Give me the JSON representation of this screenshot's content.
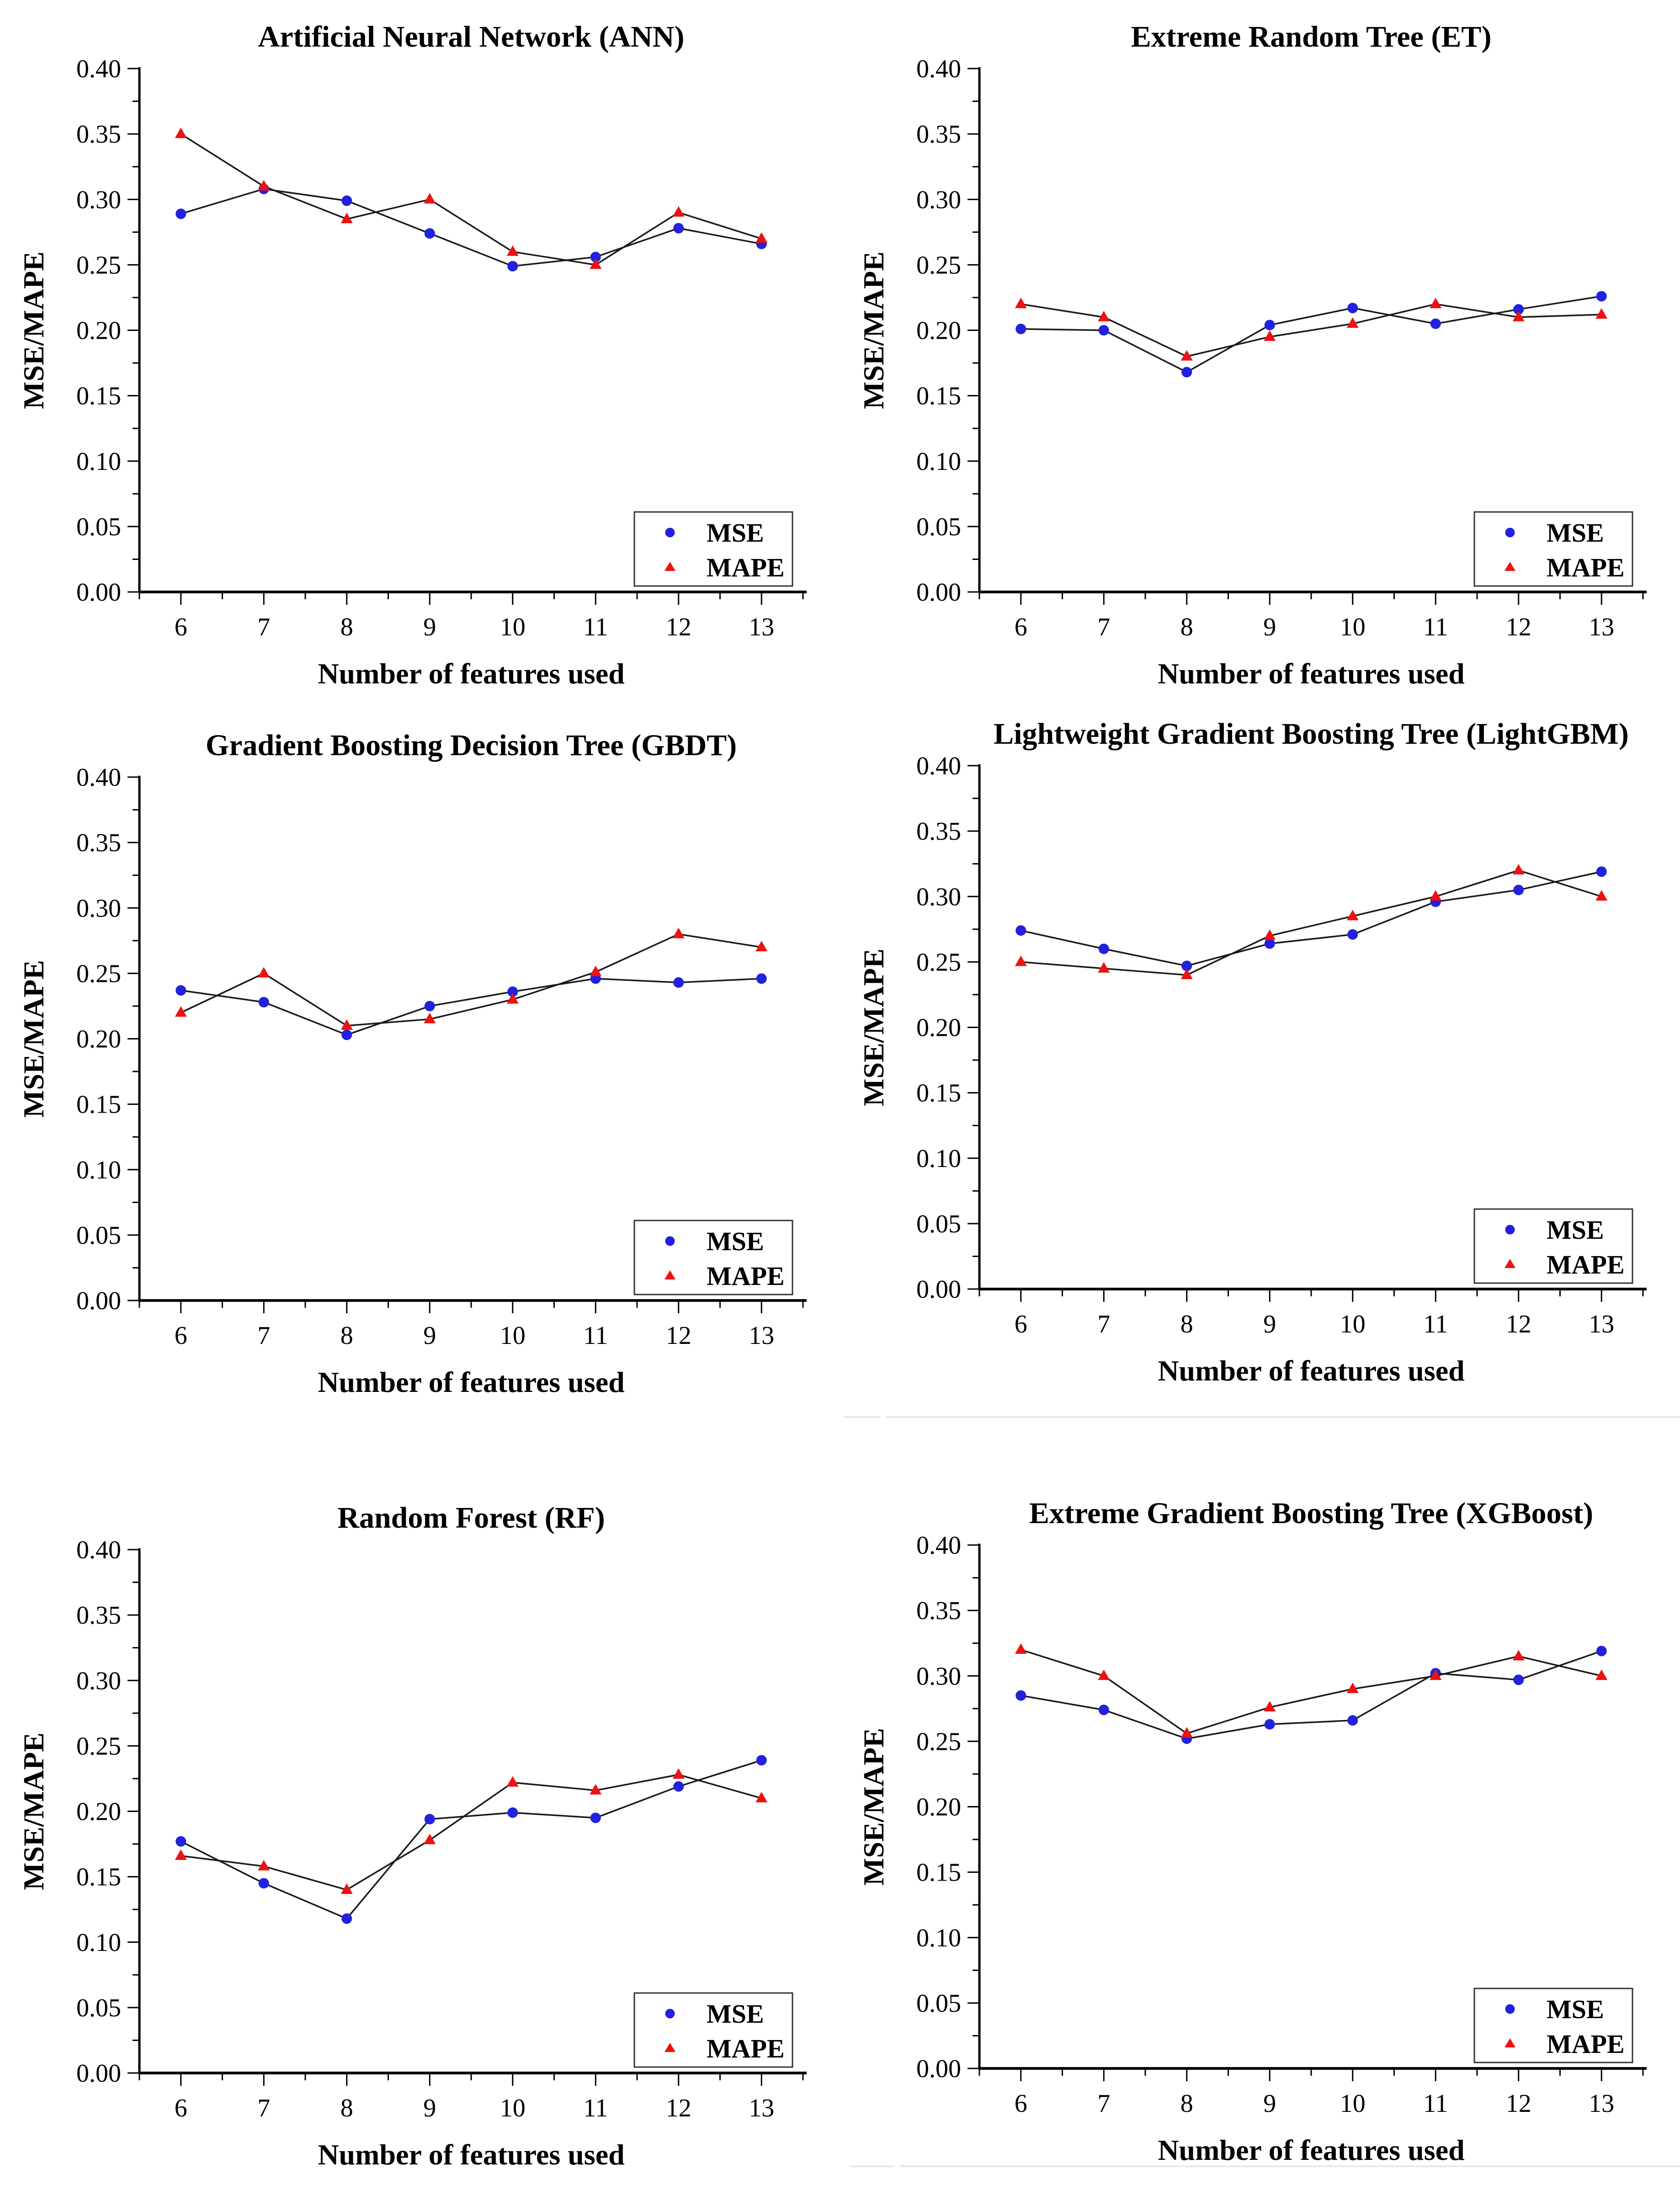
{
  "page": {
    "background": "#ffffff"
  },
  "figure": {
    "x_axis_label": "Number of features used",
    "y_axis_label": "MSE/MAPE",
    "x_ticks": [
      6,
      7,
      8,
      9,
      10,
      11,
      12,
      13
    ],
    "y_ticks": [
      "0.00",
      "0.05",
      "0.10",
      "0.15",
      "0.20",
      "0.25",
      "0.30",
      "0.35",
      "0.40"
    ],
    "legend": {
      "items": [
        "MSE",
        "MAPE"
      ]
    },
    "colors": {
      "mse_marker": "#2121de",
      "mape_marker": "#ee1111",
      "line": "#1a1a1a",
      "text": "#000000",
      "legend_border": "#333333",
      "divider": "#e9e9e9"
    }
  },
  "chart_data": [
    {
      "type": "line",
      "title": "Artificial Neural Network (ANN)",
      "xlabel": "Number of features used",
      "ylabel": "MSE/MAPE",
      "x": [
        6,
        7,
        8,
        9,
        10,
        11,
        12,
        13
      ],
      "xlim": [
        5.5,
        13.5
      ],
      "ylim": [
        0.0,
        0.4
      ],
      "ytick_step": 0.05,
      "grid": false,
      "legend_position": "bottom-right",
      "series": [
        {
          "name": "MSE",
          "marker": "circle",
          "color": "#2121de",
          "values": [
            0.289,
            0.308,
            0.299,
            0.274,
            0.249,
            0.256,
            0.278,
            0.266
          ]
        },
        {
          "name": "MAPE",
          "marker": "triangle",
          "color": "#ee1111",
          "values": [
            0.35,
            0.31,
            0.285,
            0.3,
            0.26,
            0.25,
            0.29,
            0.27
          ]
        }
      ]
    },
    {
      "type": "line",
      "title": "Extreme Random Tree (ET)",
      "xlabel": "Number of features used",
      "ylabel": "MSE/MAPE",
      "x": [
        6,
        7,
        8,
        9,
        10,
        11,
        12,
        13
      ],
      "xlim": [
        5.5,
        13.5
      ],
      "ylim": [
        0.0,
        0.4
      ],
      "ytick_step": 0.05,
      "grid": false,
      "legend_position": "bottom-right",
      "series": [
        {
          "name": "MSE",
          "marker": "circle",
          "color": "#2121de",
          "values": [
            0.201,
            0.2,
            0.168,
            0.204,
            0.217,
            0.205,
            0.216,
            0.226
          ]
        },
        {
          "name": "MAPE",
          "marker": "triangle",
          "color": "#ee1111",
          "values": [
            0.22,
            0.21,
            0.18,
            0.195,
            0.205,
            0.22,
            0.21,
            0.212
          ]
        }
      ]
    },
    {
      "type": "line",
      "title": "Gradient Boosting Decision Tree (GBDT)",
      "xlabel": "Number of features used",
      "ylabel": "MSE/MAPE",
      "x": [
        6,
        7,
        8,
        9,
        10,
        11,
        12,
        13
      ],
      "xlim": [
        5.5,
        13.5
      ],
      "ylim": [
        0.0,
        0.4
      ],
      "ytick_step": 0.05,
      "grid": false,
      "legend_position": "bottom-right",
      "series": [
        {
          "name": "MSE",
          "marker": "circle",
          "color": "#2121de",
          "values": [
            0.237,
            0.228,
            0.203,
            0.225,
            0.236,
            0.246,
            0.243,
            0.246
          ]
        },
        {
          "name": "MAPE",
          "marker": "triangle",
          "color": "#ee1111",
          "values": [
            0.22,
            0.25,
            0.21,
            0.215,
            0.23,
            0.251,
            0.28,
            0.27
          ]
        }
      ]
    },
    {
      "type": "line",
      "title": "Lightweight Gradient Boosting Tree (LightGBM)",
      "xlabel": "Number of features used",
      "ylabel": "MSE/MAPE",
      "x": [
        6,
        7,
        8,
        9,
        10,
        11,
        12,
        13
      ],
      "xlim": [
        5.5,
        13.5
      ],
      "ylim": [
        0.0,
        0.4
      ],
      "ytick_step": 0.05,
      "grid": false,
      "legend_position": "bottom-right",
      "series": [
        {
          "name": "MSE",
          "marker": "circle",
          "color": "#2121de",
          "values": [
            0.274,
            0.26,
            0.247,
            0.264,
            0.271,
            0.296,
            0.305,
            0.319
          ]
        },
        {
          "name": "MAPE",
          "marker": "triangle",
          "color": "#ee1111",
          "values": [
            0.25,
            0.245,
            0.24,
            0.27,
            0.285,
            0.3,
            0.32,
            0.3
          ]
        }
      ]
    },
    {
      "type": "line",
      "title": "Random Forest (RF)",
      "xlabel": "Number of features used",
      "ylabel": "MSE/MAPE",
      "x": [
        6,
        7,
        8,
        9,
        10,
        11,
        12,
        13
      ],
      "xlim": [
        5.5,
        13.5
      ],
      "ylim": [
        0.0,
        0.4
      ],
      "ytick_step": 0.05,
      "grid": false,
      "legend_position": "bottom-right",
      "series": [
        {
          "name": "MSE",
          "marker": "circle",
          "color": "#2121de",
          "values": [
            0.177,
            0.145,
            0.118,
            0.194,
            0.199,
            0.195,
            0.219,
            0.239
          ]
        },
        {
          "name": "MAPE",
          "marker": "triangle",
          "color": "#ee1111",
          "values": [
            0.166,
            0.158,
            0.14,
            0.178,
            0.222,
            0.216,
            0.228,
            0.21
          ]
        }
      ]
    },
    {
      "type": "line",
      "title": "Extreme Gradient Boosting Tree (XGBoost)",
      "xlabel": "Number of features used",
      "ylabel": "MSE/MAPE",
      "x": [
        6,
        7,
        8,
        9,
        10,
        11,
        12,
        13
      ],
      "xlim": [
        5.5,
        13.5
      ],
      "ylim": [
        0.0,
        0.4
      ],
      "ytick_step": 0.05,
      "grid": false,
      "legend_position": "bottom-right",
      "series": [
        {
          "name": "MSE",
          "marker": "circle",
          "color": "#2121de",
          "values": [
            0.285,
            0.274,
            0.252,
            0.263,
            0.266,
            0.302,
            0.297,
            0.319
          ]
        },
        {
          "name": "MAPE",
          "marker": "triangle",
          "color": "#ee1111",
          "values": [
            0.32,
            0.3,
            0.256,
            0.276,
            0.29,
            0.3,
            0.315,
            0.3
          ]
        }
      ]
    }
  ]
}
